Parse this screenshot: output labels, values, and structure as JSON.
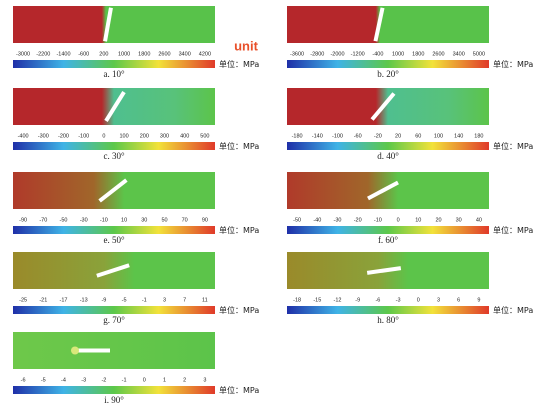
{
  "unit_note": "unit",
  "panels": [
    {
      "caption": "a. 10°",
      "unit": "单位：MPa",
      "ticks": [
        -3000,
        -2200,
        -1400,
        -600,
        200,
        1000,
        1800,
        2600,
        3400,
        4200
      ]
    },
    {
      "caption": "b. 20°",
      "unit": "单位：MPa",
      "ticks": [
        -3600,
        -2800,
        -2000,
        -1200,
        -400,
        1000,
        1800,
        2600,
        3400,
        5000
      ]
    },
    {
      "caption": "c. 30°",
      "unit": "单位：MPa",
      "ticks": [
        -400,
        -300,
        -200,
        -100,
        0,
        100,
        200,
        300,
        400,
        500
      ]
    },
    {
      "caption": "d. 40°",
      "unit": "单位：MPa",
      "ticks": [
        -180,
        -140,
        -100,
        -60,
        -20,
        20,
        60,
        100,
        140,
        180
      ]
    },
    {
      "caption": "e. 50°",
      "unit": "单位：MPa",
      "ticks": [
        -90,
        -70,
        -50,
        -30,
        -10,
        10,
        30,
        50,
        70,
        90
      ]
    },
    {
      "caption": "f. 60°",
      "unit": "单位：MPa",
      "ticks": [
        -50,
        -40,
        -30,
        -20,
        -10,
        0,
        10,
        20,
        30,
        40
      ]
    },
    {
      "caption": "g. 70°",
      "unit": "单位：MPa",
      "ticks": [
        -25,
        -21,
        -17,
        -13,
        -9,
        -5,
        -1,
        3,
        7,
        11
      ]
    },
    {
      "caption": "h. 80°",
      "unit": "单位：MPa",
      "ticks": [
        -18,
        -15,
        -12,
        -9,
        -6,
        -3,
        0,
        3,
        6,
        9
      ]
    },
    {
      "caption": "i. 90°",
      "unit": "单位：MPa",
      "ticks": [
        -6,
        -5,
        -4,
        -3,
        -2,
        -1,
        0,
        1,
        2,
        3
      ]
    }
  ]
}
